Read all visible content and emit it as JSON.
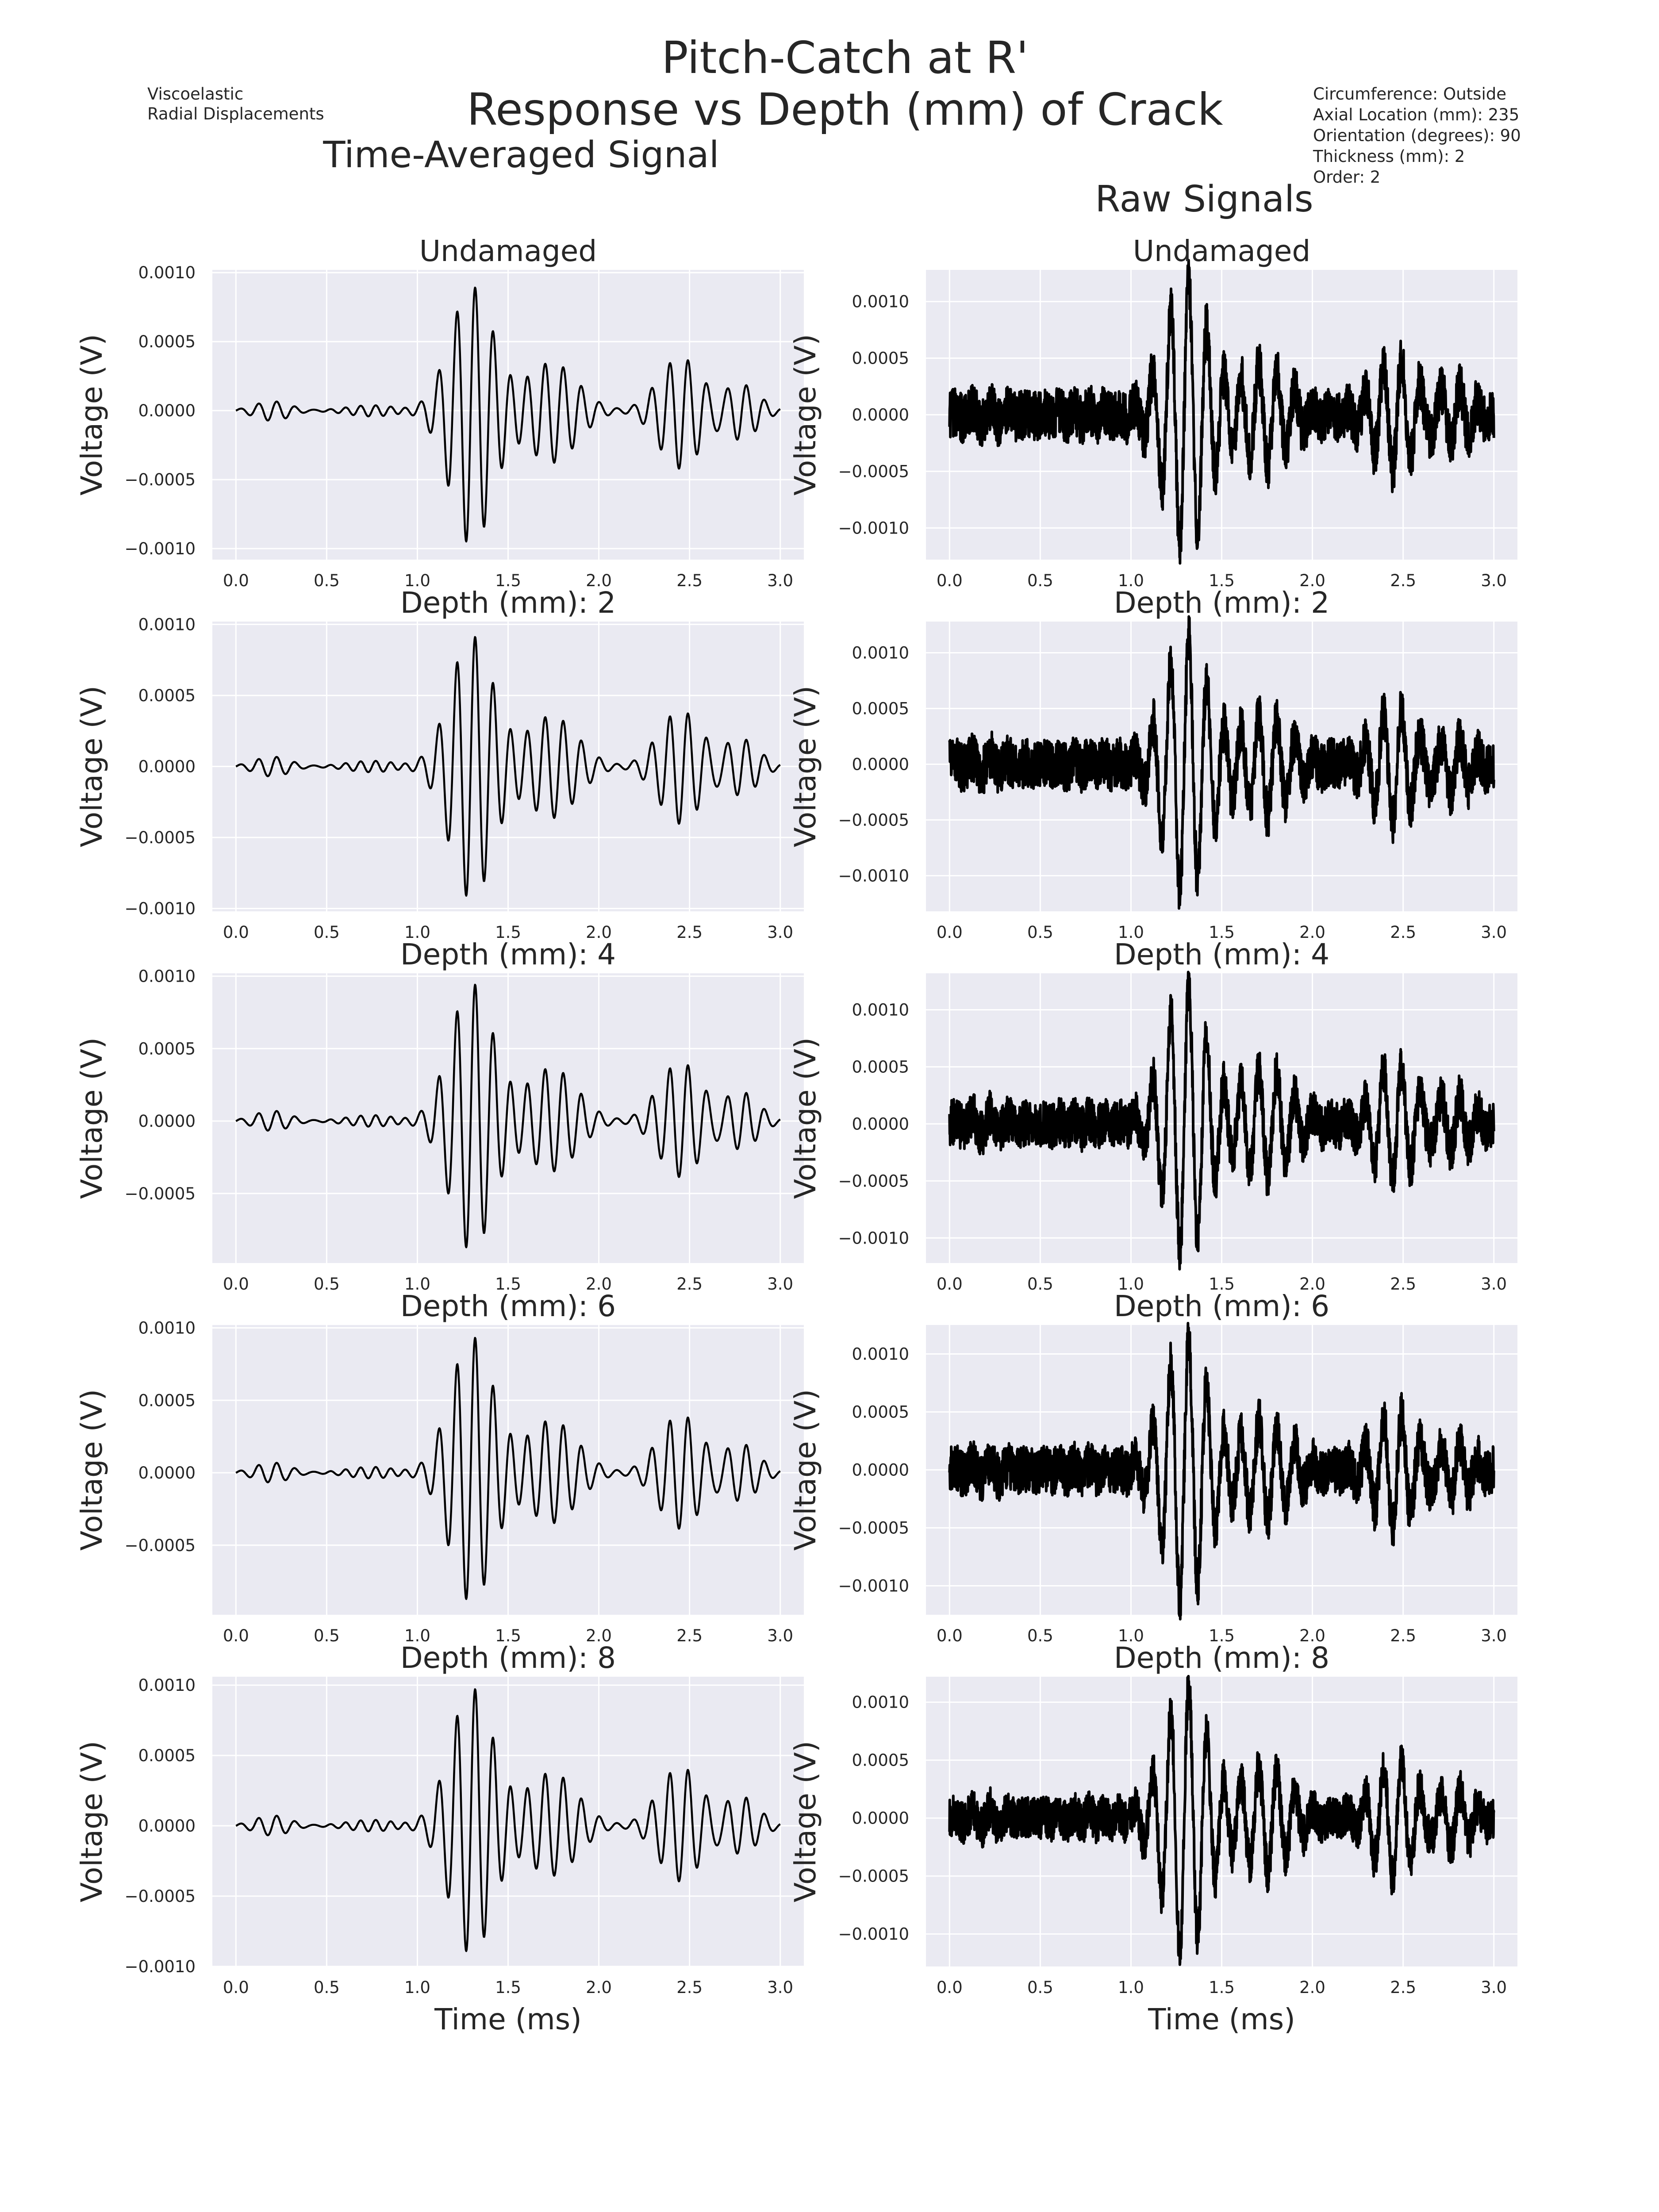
{
  "figure": {
    "title_line1": "Pitch-Catch at R'",
    "title_line2": "Response vs Depth (mm) of Crack",
    "info_left": [
      "Viscoelastic",
      "Radial Displacements"
    ],
    "info_right": [
      "Circumference: Outside",
      "Axial Location (mm): 235",
      "Orientation (degrees): 90",
      "Thickness (mm): 2",
      "Order: 2"
    ],
    "left_column_title": "Time-Averaged Signal",
    "right_column_title": "Raw Signals",
    "ylabel": "Voltage (V)",
    "xlabel": "Time (ms)",
    "colors": {
      "panel_bg": "#eaeaf2",
      "grid": "#ffffff",
      "line": "#000000",
      "text": "#262626"
    }
  },
  "chart_data": [
    {
      "type": "line",
      "panel": "avg",
      "title": "Undamaged",
      "xlabel": "",
      "ylabel": "Voltage (V)",
      "xlim": [
        -0.13,
        3.13
      ],
      "ylim": [
        -0.00108,
        0.00102
      ],
      "xticks": [
        "0.0",
        "0.5",
        "1.0",
        "1.5",
        "2.0",
        "2.5",
        "3.0"
      ],
      "yticks": [
        "0.0010",
        "0.0005",
        "0.0000",
        "−0.0005",
        "−0.0010"
      ],
      "ytick_values": [
        0.001,
        0.0005,
        0,
        -0.0005,
        -0.001
      ],
      "grid": true,
      "peak_pos": 0.0009,
      "peak_neg": -0.00098,
      "noise": 0,
      "seed": 11
    },
    {
      "type": "line",
      "panel": "raw",
      "title": "Undamaged",
      "xlabel": "",
      "ylabel": "Voltage (V)",
      "xlim": [
        -0.13,
        3.13
      ],
      "ylim": [
        -0.00128,
        0.00128
      ],
      "xticks": [
        "0.0",
        "0.5",
        "1.0",
        "1.5",
        "2.0",
        "2.5",
        "3.0"
      ],
      "yticks": [
        "0.0010",
        "0.0005",
        "0.0000",
        "−0.0005",
        "−0.0010"
      ],
      "ytick_values": [
        0.001,
        0.0005,
        0,
        -0.0005,
        -0.001
      ],
      "grid": true,
      "peak_pos": 0.0012,
      "peak_neg": -0.00118,
      "noise": 0.00022,
      "seed": 12
    },
    {
      "type": "line",
      "panel": "avg",
      "title": "Depth (mm): 2",
      "xlabel": "",
      "ylabel": "Voltage (V)",
      "xlim": [
        -0.13,
        3.13
      ],
      "ylim": [
        -0.00102,
        0.00102
      ],
      "xticks": [
        "0.0",
        "0.5",
        "1.0",
        "1.5",
        "2.0",
        "2.5",
        "3.0"
      ],
      "yticks": [
        "0.0010",
        "0.0005",
        "0.0000",
        "−0.0005",
        "−0.0010"
      ],
      "ytick_values": [
        0.001,
        0.0005,
        0,
        -0.0005,
        -0.001
      ],
      "grid": true,
      "peak_pos": 0.00092,
      "peak_neg": -0.00094,
      "noise": 0,
      "seed": 21
    },
    {
      "type": "line",
      "panel": "raw",
      "title": "Depth (mm): 2",
      "xlabel": "",
      "ylabel": "Voltage (V)",
      "xlim": [
        -0.13,
        3.13
      ],
      "ylim": [
        -0.00132,
        0.00128
      ],
      "xticks": [
        "0.0",
        "0.5",
        "1.0",
        "1.5",
        "2.0",
        "2.5",
        "3.0"
      ],
      "yticks": [
        "0.0010",
        "0.0005",
        "0.0000",
        "−0.0005",
        "−0.0010"
      ],
      "ytick_values": [
        0.001,
        0.0005,
        0,
        -0.0005,
        -0.001
      ],
      "grid": true,
      "peak_pos": 0.00115,
      "peak_neg": -0.0012,
      "noise": 0.00022,
      "seed": 22
    },
    {
      "type": "line",
      "panel": "avg",
      "title": "Depth (mm): 4",
      "xlabel": "",
      "ylabel": "Voltage (V)",
      "xlim": [
        -0.13,
        3.13
      ],
      "ylim": [
        -0.00098,
        0.00102
      ],
      "xticks": [
        "0.0",
        "0.5",
        "1.0",
        "1.5",
        "2.0",
        "2.5",
        "3.0"
      ],
      "yticks": [
        "0.0010",
        "0.0005",
        "0.0000",
        "−0.0005"
      ],
      "ytick_values": [
        0.001,
        0.0005,
        0,
        -0.0005
      ],
      "grid": true,
      "peak_pos": 0.00095,
      "peak_neg": -0.0009,
      "noise": 0,
      "seed": 31
    },
    {
      "type": "line",
      "panel": "raw",
      "title": "Depth (mm): 4",
      "xlabel": "",
      "ylabel": "Voltage (V)",
      "xlim": [
        -0.13,
        3.13
      ],
      "ylim": [
        -0.00122,
        0.00132
      ],
      "xticks": [
        "0.0",
        "0.5",
        "1.0",
        "1.5",
        "2.0",
        "2.5",
        "3.0"
      ],
      "yticks": [
        "0.0010",
        "0.0005",
        "0.0000",
        "−0.0005",
        "−0.0010"
      ],
      "ytick_values": [
        0.001,
        0.0005,
        0,
        -0.0005,
        -0.001
      ],
      "grid": true,
      "peak_pos": 0.00122,
      "peak_neg": -0.00115,
      "noise": 0.0002,
      "seed": 32
    },
    {
      "type": "line",
      "panel": "avg",
      "title": "Depth (mm): 6",
      "xlabel": "",
      "ylabel": "Voltage (V)",
      "xlim": [
        -0.13,
        3.13
      ],
      "ylim": [
        -0.00098,
        0.00102
      ],
      "xticks": [
        "0.0",
        "0.5",
        "1.0",
        "1.5",
        "2.0",
        "2.5",
        "3.0"
      ],
      "yticks": [
        "0.0010",
        "0.0005",
        "0.0000",
        "−0.0005"
      ],
      "ytick_values": [
        0.001,
        0.0005,
        0,
        -0.0005
      ],
      "grid": true,
      "peak_pos": 0.00094,
      "peak_neg": -0.0009,
      "noise": 0,
      "seed": 41
    },
    {
      "type": "line",
      "panel": "raw",
      "title": "Depth (mm): 6",
      "xlabel": "",
      "ylabel": "Voltage (V)",
      "xlim": [
        -0.13,
        3.13
      ],
      "ylim": [
        -0.00125,
        0.00125
      ],
      "xticks": [
        "0.0",
        "0.5",
        "1.0",
        "1.5",
        "2.0",
        "2.5",
        "3.0"
      ],
      "yticks": [
        "0.0010",
        "0.0005",
        "0.0000",
        "−0.0005",
        "−0.0010"
      ],
      "ytick_values": [
        0.001,
        0.0005,
        0,
        -0.0005,
        -0.001
      ],
      "grid": true,
      "peak_pos": 0.00114,
      "peak_neg": -0.00115,
      "noise": 0.0002,
      "seed": 42
    },
    {
      "type": "line",
      "panel": "avg",
      "title": "Depth (mm): 8",
      "xlabel": "Time (ms)",
      "ylabel": "Voltage (V)",
      "xlim": [
        -0.13,
        3.13
      ],
      "ylim": [
        -0.001,
        0.00106
      ],
      "xticks": [
        "0.0",
        "0.5",
        "1.0",
        "1.5",
        "2.0",
        "2.5",
        "3.0"
      ],
      "yticks": [
        "0.0010",
        "0.0005",
        "0.0000",
        "−0.0005",
        "−0.0010"
      ],
      "ytick_values": [
        0.001,
        0.0005,
        0,
        -0.0005,
        -0.001
      ],
      "grid": true,
      "peak_pos": 0.00098,
      "peak_neg": -0.00092,
      "noise": 0,
      "seed": 51
    },
    {
      "type": "line",
      "panel": "raw",
      "title": "Depth (mm): 8",
      "xlabel": "Time (ms)",
      "ylabel": "Voltage (V)",
      "xlim": [
        -0.13,
        3.13
      ],
      "ylim": [
        -0.00128,
        0.00122
      ],
      "xticks": [
        "0.0",
        "0.5",
        "1.0",
        "1.5",
        "2.0",
        "2.5",
        "3.0"
      ],
      "yticks": [
        "0.0010",
        "0.0005",
        "0.0000",
        "−0.0005",
        "−0.0010"
      ],
      "ytick_values": [
        0.001,
        0.0005,
        0,
        -0.0005,
        -0.001
      ],
      "grid": true,
      "peak_pos": 0.00115,
      "peak_neg": -0.0012,
      "noise": 0.00018,
      "seed": 52
    }
  ]
}
